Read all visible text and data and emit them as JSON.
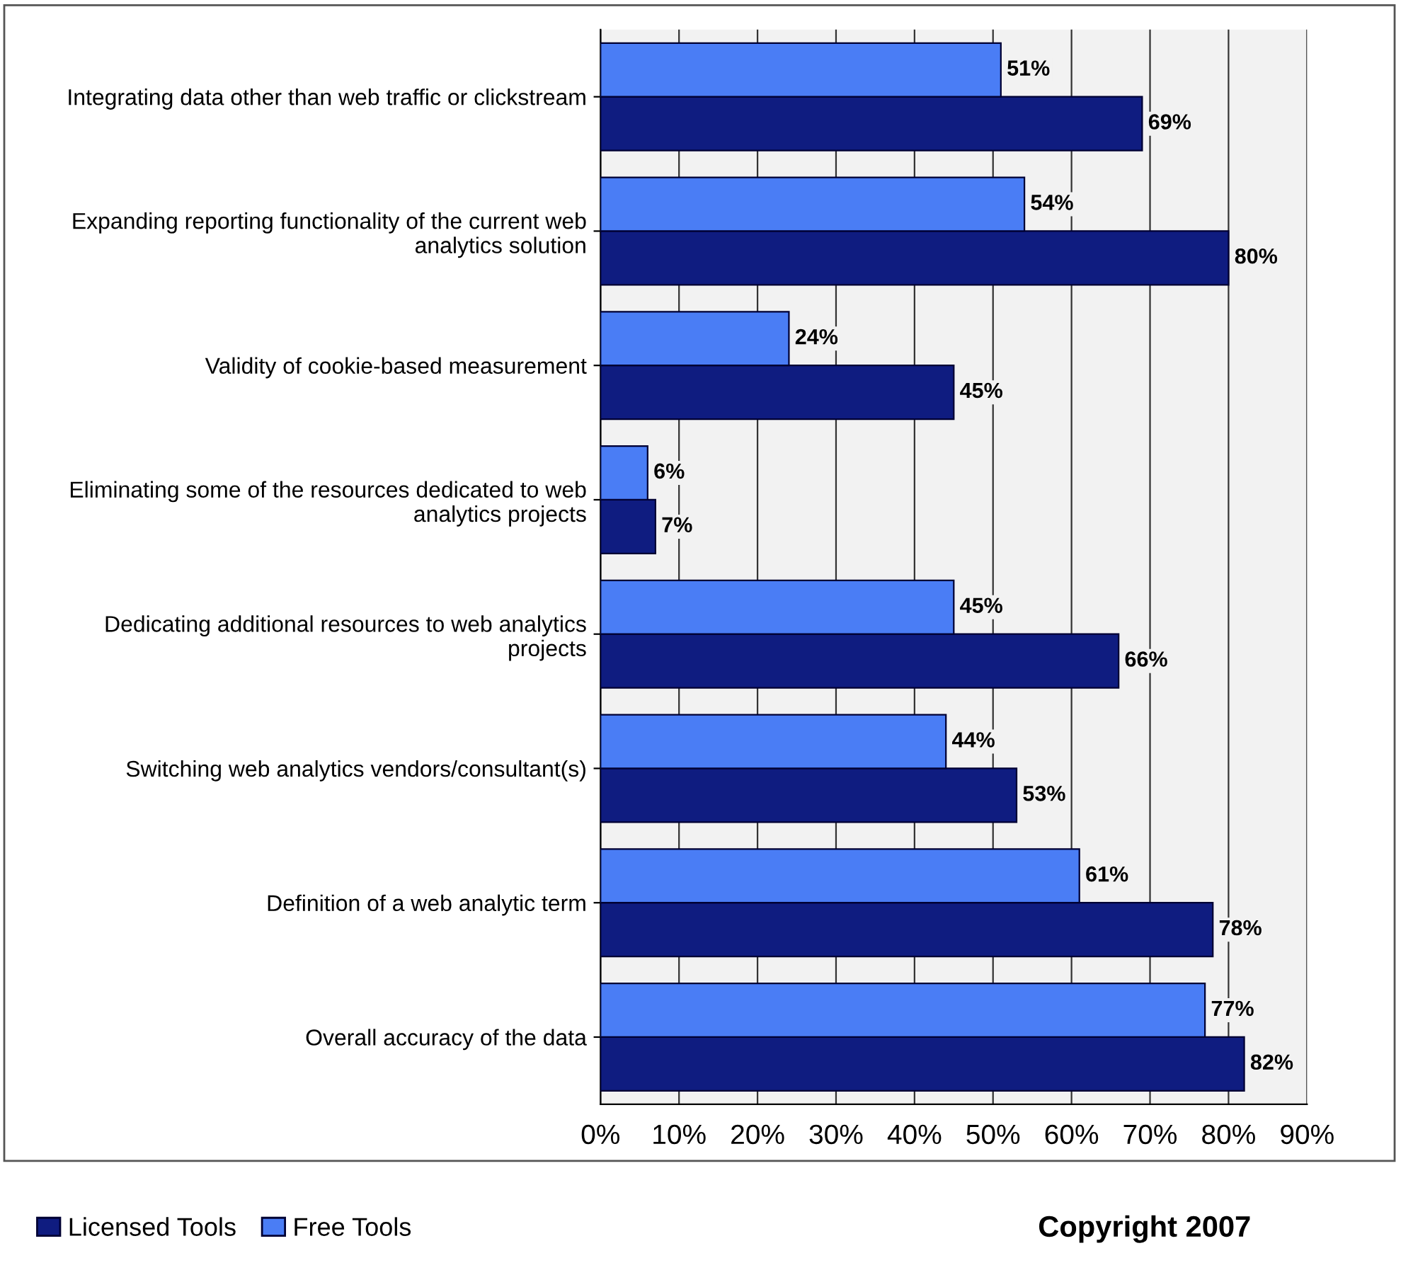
{
  "chart_data": {
    "type": "bar",
    "orientation": "horizontal",
    "categories": [
      "Integrating data other than web traffic or clickstream",
      "Expanding reporting functionality of the current web\nanalytics solution",
      "Validity of cookie-based measurement",
      "Eliminating some of the resources dedicated to web\nanalytics projects",
      "Dedicating additional resources to web analytics\nprojects",
      "Switching web analytics vendors/consultant(s)",
      "Definition of a web analytic term",
      "Overall accuracy of the data"
    ],
    "series": [
      {
        "name": "Licensed Tools",
        "color": "#0f1c80",
        "values": [
          69,
          80,
          45,
          7,
          66,
          53,
          78,
          82
        ],
        "value_labels": [
          "69%",
          "80%",
          "45%",
          "7%",
          "66%",
          "53%",
          "78%",
          "82%"
        ]
      },
      {
        "name": "Free Tools",
        "color": "#4a7df5",
        "values": [
          51,
          54,
          24,
          6,
          45,
          44,
          61,
          77
        ],
        "value_labels": [
          "51%",
          "54%",
          "24%",
          "6%",
          "45%",
          "44%",
          "61%",
          "77%"
        ]
      }
    ],
    "xlim": [
      0,
      90
    ],
    "xticks": [
      {
        "value": 0,
        "label": "0%"
      },
      {
        "value": 10,
        "label": "10%"
      },
      {
        "value": 20,
        "label": "20%"
      },
      {
        "value": 30,
        "label": "30%"
      },
      {
        "value": 40,
        "label": "40%"
      },
      {
        "value": 50,
        "label": "50%"
      },
      {
        "value": 60,
        "label": "60%"
      },
      {
        "value": 70,
        "label": "70%"
      },
      {
        "value": 80,
        "label": "80%"
      },
      {
        "value": 90,
        "label": "90%"
      }
    ],
    "grid": "x",
    "legend": "bottom left",
    "annotations": [
      "Copyright 2007"
    ]
  }
}
